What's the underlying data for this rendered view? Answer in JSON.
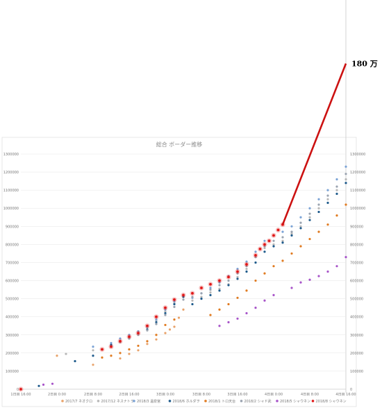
{
  "chart_data": {
    "type": "scatter",
    "title": "総合 ボーダー推移",
    "xlabel": "",
    "ylabel": "",
    "x_ticks": [
      "1日目 16:00",
      "2日目 0:00",
      "2日目 8:00",
      "2日目 16:00",
      "3日目 0:00",
      "3日目 8:00",
      "3日目 16:00",
      "4日目 0:00",
      "4日目 8:00",
      "4日目 16:00"
    ],
    "xlim": [
      0,
      72
    ],
    "ylim": [
      0,
      1300000
    ],
    "y_ticks": [
      "0",
      "100000",
      "200000",
      "300000",
      "400000",
      "500000",
      "600000",
      "700000",
      "800000",
      "900000",
      "1000000",
      "1100000",
      "1200000",
      "1300000"
    ],
    "y_ticks_right": [
      "0",
      "100000",
      "200000",
      "300000",
      "400000",
      "500000",
      "600000",
      "700000",
      "800000",
      "900000",
      "1000000",
      "1100000",
      "1200000",
      "1300000"
    ],
    "grid": true,
    "legend_position": "bottom",
    "series": [
      {
        "name": "2017/7 ネオクロ",
        "color": "#e8a26a",
        "x": [
          8,
          16,
          22,
          24,
          26,
          28,
          30,
          32,
          33,
          34,
          35,
          36
        ],
        "y": [
          185000,
          135000,
          170000,
          195000,
          215000,
          250000,
          275000,
          310000,
          330000,
          345000,
          395000,
          440000
        ]
      },
      {
        "name": "2017/12 ネスナトラ",
        "color": "#b8b8b8",
        "x": [
          10,
          16,
          20,
          22,
          24,
          26,
          28,
          30,
          32,
          34,
          36,
          38,
          40,
          42,
          44,
          46,
          48,
          50,
          52,
          54,
          56,
          58,
          60,
          62,
          64,
          66,
          68,
          70,
          72
        ],
        "y": [
          195000,
          215000,
          240000,
          265000,
          285000,
          310000,
          340000,
          380000,
          430000,
          475000,
          515000,
          490000,
          510000,
          535000,
          555000,
          580000,
          620000,
          665000,
          730000,
          780000,
          800000,
          820000,
          860000,
          900000,
          950000,
          1000000,
          1050000,
          1100000,
          1160000
        ]
      },
      {
        "name": "2018/3 温泉宮",
        "color": "#7ba3d6",
        "x": [
          16,
          20,
          22,
          24,
          26,
          28,
          30,
          32,
          34,
          36,
          38,
          40,
          42,
          44,
          46,
          48,
          50,
          52,
          54,
          56,
          58,
          60,
          62,
          64,
          66,
          68,
          70,
          72
        ],
        "y": [
          235000,
          255000,
          280000,
          300000,
          320000,
          345000,
          385000,
          440000,
          485000,
          520000,
          505000,
          530000,
          560000,
          590000,
          625000,
          665000,
          705000,
          760000,
          820000,
          850000,
          870000,
          900000,
          950000,
          1000000,
          1050000,
          1100000,
          1160000,
          1230000
        ]
      },
      {
        "name": "2018/6 ホルダヲ",
        "color": "#1f5b8c",
        "x": [
          4,
          12,
          16,
          18,
          20,
          22,
          24,
          26,
          28,
          30,
          32,
          34,
          36,
          38,
          40,
          42,
          44,
          46,
          48,
          50,
          52,
          54,
          56,
          58,
          60,
          62,
          64,
          66,
          68,
          70,
          72
        ],
        "y": [
          18000,
          155000,
          185000,
          220000,
          245000,
          265000,
          285000,
          305000,
          330000,
          370000,
          420000,
          470000,
          510000,
          470000,
          500000,
          520000,
          545000,
          575000,
          610000,
          650000,
          700000,
          760000,
          790000,
          810000,
          850000,
          890000,
          935000,
          980000,
          1030000,
          1080000,
          1140000
        ]
      },
      {
        "name": "2018/1 トロ天台",
        "color": "#e07b21",
        "x": [
          18,
          20,
          22,
          24,
          26,
          28,
          30,
          32,
          34,
          42,
          44,
          46,
          48,
          50,
          52,
          54,
          56,
          58,
          60,
          62,
          64,
          66,
          68,
          70,
          72
        ],
        "y": [
          175000,
          185000,
          200000,
          220000,
          240000,
          265000,
          300000,
          355000,
          385000,
          410000,
          440000,
          470000,
          505000,
          545000,
          600000,
          640000,
          680000,
          710000,
          750000,
          790000,
          830000,
          870000,
          910000,
          960000,
          1020000
        ]
      },
      {
        "name": "2018/2 シャド武",
        "color": "#9aa3b0",
        "x": [
          22,
          24,
          26,
          28,
          30,
          32,
          34,
          36,
          38,
          40,
          42,
          44,
          46,
          48,
          50,
          52,
          54,
          56,
          58,
          60,
          62,
          64,
          66,
          68,
          70,
          72
        ],
        "y": [
          260000,
          280000,
          300000,
          325000,
          360000,
          410000,
          455000,
          495000,
          510000,
          530000,
          550000,
          575000,
          600000,
          640000,
          680000,
          730000,
          790000,
          820000,
          840000,
          870000,
          920000,
          970000,
          1020000,
          1070000,
          1120000,
          1190000
        ]
      },
      {
        "name": "2018/5 シャウネン",
        "color": "#a855c9",
        "x": [
          5,
          7,
          44,
          46,
          48,
          50,
          52,
          54,
          56,
          60,
          62,
          64,
          66,
          68,
          70,
          72
        ],
        "y": [
          25000,
          30000,
          350000,
          370000,
          390000,
          420000,
          450000,
          490000,
          520000,
          560000,
          590000,
          605000,
          625000,
          650000,
          680000,
          730000
        ]
      },
      {
        "name": "2018/8 シャウネン",
        "color": "#e01818",
        "x": [
          0,
          18,
          20,
          22,
          24,
          26,
          28,
          30,
          32,
          34,
          36,
          38,
          40,
          42,
          44,
          46,
          48,
          50,
          52,
          53,
          54,
          55,
          56,
          57,
          58
        ],
        "y": [
          0,
          220000,
          235000,
          265000,
          290000,
          310000,
          350000,
          400000,
          450000,
          495000,
          520000,
          530000,
          560000,
          580000,
          600000,
          620000,
          650000,
          690000,
          740000,
          775000,
          800000,
          820000,
          850000,
          880000,
          910000
        ]
      }
    ],
    "annotation": {
      "text": "180 万",
      "x": 72,
      "y": 1800000,
      "color": "#cc1111",
      "from_x": 58,
      "from_y": 910000
    }
  }
}
